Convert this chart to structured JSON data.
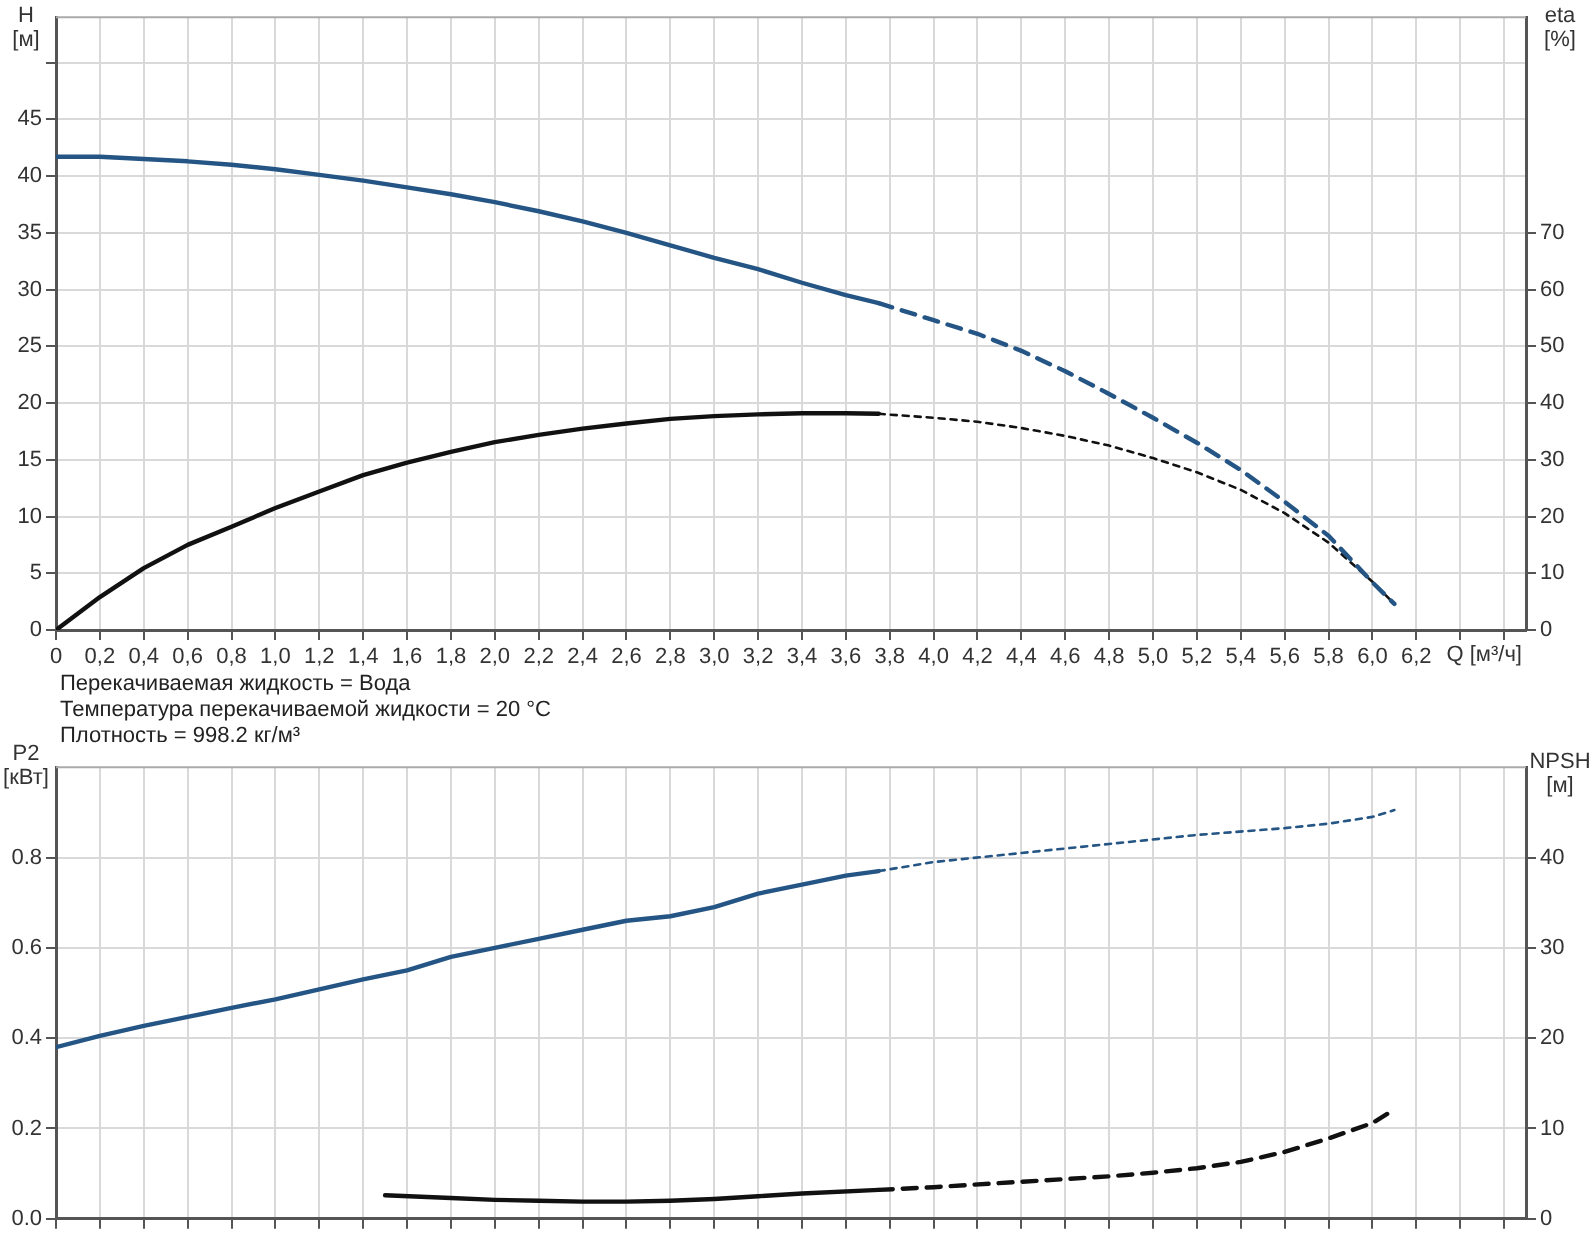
{
  "chart_data": [
    {
      "type": "line",
      "ylabel": "H [м]",
      "y2label": "eta [%]",
      "xlabel": "Q [м³/ч]",
      "grid": true,
      "legend": false,
      "xlim": [
        0,
        6.7
      ],
      "xticks": [
        0,
        {
          "value": 0.2,
          "label": "0,2"
        },
        {
          "value": 0.4,
          "label": "0,4"
        },
        {
          "value": 0.6,
          "label": "0,6"
        },
        {
          "value": 0.8,
          "label": "0,8"
        },
        {
          "value": 1,
          "label": "1,0"
        },
        {
          "value": 1.2,
          "label": "1,2"
        },
        {
          "value": 1.4,
          "label": "1,4"
        },
        {
          "value": 1.6,
          "label": "1,6"
        },
        {
          "value": 1.8,
          "label": "1,8"
        },
        {
          "value": 2,
          "label": "2,0"
        },
        {
          "value": 2.2,
          "label": "2,2"
        },
        {
          "value": 2.4,
          "label": "2,4"
        },
        {
          "value": 2.6,
          "label": "2,6"
        },
        {
          "value": 2.8,
          "label": "2,8"
        },
        {
          "value": 3,
          "label": "3,0"
        },
        {
          "value": 3.2,
          "label": "3,2"
        },
        {
          "value": 3.4,
          "label": "3,4"
        },
        {
          "value": 3.6,
          "label": "3,6"
        },
        {
          "value": 3.8,
          "label": "3,8"
        },
        {
          "value": 4,
          "label": "4,0"
        },
        {
          "value": 4.2,
          "label": "4,2"
        },
        {
          "value": 4.4,
          "label": "4,4"
        },
        {
          "value": 4.6,
          "label": "4,6"
        },
        {
          "value": 4.8,
          "label": "4,8"
        },
        {
          "value": 5,
          "label": "5,0"
        },
        {
          "value": 5.2,
          "label": "5,2"
        },
        {
          "value": 5.4,
          "label": "5,4"
        },
        {
          "value": 5.6,
          "label": "5,6"
        },
        {
          "value": 5.8,
          "label": "5,8"
        },
        {
          "value": 6,
          "label": "6,0"
        },
        {
          "value": 6.2,
          "label": "6,2"
        },
        {
          "value": 6.4,
          "label": null
        },
        {
          "value": 6.6,
          "label": null
        }
      ],
      "ylim": [
        0,
        54
      ],
      "yticks": [
        0,
        5,
        10,
        15,
        20,
        25,
        30,
        35,
        40,
        45,
        {
          "value": 50,
          "label": null
        }
      ],
      "y2lim": [
        0,
        108
      ],
      "y2ticks": [
        0,
        10,
        20,
        30,
        40,
        50,
        60,
        70
      ],
      "annotations": [
        "Перекачиваемая жидкость = Вода",
        "Температура перекачиваемой жидкости = 20 °C",
        "Плотность = 998.2 кг/м³"
      ],
      "series": [
        {
          "color": "#245584",
          "line_style": "solid",
          "x": [
            0,
            0.2,
            0.4,
            0.6,
            0.8,
            1.0,
            1.2,
            1.4,
            1.6,
            1.8,
            2.0,
            2.2,
            2.4,
            2.6,
            2.8,
            3.0,
            3.2,
            3.4,
            3.6,
            3.75
          ],
          "values": [
            41.7,
            41.7,
            41.5,
            41.3,
            41.0,
            40.6,
            40.1,
            39.6,
            39.0,
            38.4,
            37.7,
            36.9,
            36.0,
            35.0,
            33.9,
            32.8,
            31.8,
            30.6,
            29.5,
            28.8
          ]
        },
        {
          "color": "#245584",
          "line_style": "dashed",
          "x": [
            3.75,
            4.0,
            4.2,
            4.4,
            4.6,
            4.8,
            5.0,
            5.2,
            5.4,
            5.6,
            5.8,
            6.0,
            6.1
          ],
          "values": [
            28.8,
            27.3,
            26.1,
            24.6,
            22.8,
            20.8,
            18.7,
            16.5,
            14.1,
            11.3,
            8.3,
            4.2,
            2.3
          ]
        },
        {
          "color": "#111111",
          "line_style": "solid",
          "axis": "y2",
          "x": [
            0,
            0.2,
            0.4,
            0.6,
            0.8,
            1.0,
            1.2,
            1.4,
            1.6,
            1.8,
            2.0,
            2.2,
            2.4,
            2.6,
            2.8,
            3.0,
            3.2,
            3.4,
            3.6,
            3.75
          ],
          "values": [
            0,
            5.8,
            10.9,
            15.0,
            18.2,
            21.5,
            24.4,
            27.3,
            29.5,
            31.4,
            33.1,
            34.4,
            35.5,
            36.4,
            37.2,
            37.7,
            38.0,
            38.2,
            38.2,
            38.1
          ]
        },
        {
          "color": "#111111",
          "line_style": "dotted",
          "axis": "y2",
          "x": [
            3.75,
            4.0,
            4.2,
            4.4,
            4.6,
            4.8,
            5.0,
            5.2,
            5.4,
            5.6,
            5.8,
            6.0,
            6.1
          ],
          "values": [
            38.1,
            37.4,
            36.7,
            35.6,
            34.2,
            32.5,
            30.3,
            27.8,
            24.7,
            20.6,
            15.4,
            8.5,
            4.6
          ]
        }
      ]
    },
    {
      "type": "line",
      "ylabel": "P2 [кВт]",
      "y2label": "NPSH [м]",
      "grid": true,
      "legend": false,
      "tick_labels": "y",
      "xlim": [
        0,
        6.7
      ],
      "xticks": [
        0,
        0.2,
        0.4,
        0.6,
        0.8,
        1,
        1.2,
        1.4,
        1.6,
        1.8,
        2,
        2.2,
        2.4,
        2.6,
        2.8,
        3,
        3.2,
        3.4,
        3.6,
        3.8,
        4,
        4.2,
        4.4,
        4.6,
        4.8,
        5,
        5.2,
        5.4,
        5.6,
        5.8,
        6,
        6.2,
        6.4,
        6.6
      ],
      "ylim": [
        0,
        1
      ],
      "yticks": [
        {
          "value": 0,
          "label": "0.0"
        },
        0.2,
        0.4,
        0.6,
        0.8
      ],
      "y2lim": [
        0,
        50
      ],
      "y2ticks": [
        0,
        10,
        20,
        30,
        40
      ],
      "series": [
        {
          "color": "#245584",
          "line_style": "solid",
          "x": [
            0,
            0.2,
            0.4,
            0.6,
            0.8,
            1.0,
            1.2,
            1.4,
            1.6,
            1.8,
            2.0,
            2.2,
            2.4,
            2.6,
            2.8,
            3.0,
            3.2,
            3.4,
            3.6,
            3.75
          ],
          "values": [
            0.38,
            0.405,
            0.427,
            0.447,
            0.467,
            0.486,
            0.508,
            0.53,
            0.55,
            0.58,
            0.6,
            0.62,
            0.64,
            0.66,
            0.67,
            0.69,
            0.72,
            0.74,
            0.76,
            0.77
          ]
        },
        {
          "color": "#245584",
          "line_style": "dotted",
          "x": [
            3.75,
            4.0,
            4.4,
            4.8,
            5.2,
            5.6,
            5.8,
            6.0,
            6.1
          ],
          "values": [
            0.77,
            0.79,
            0.81,
            0.83,
            0.85,
            0.865,
            0.875,
            0.89,
            0.905
          ]
        },
        {
          "color": "#111111",
          "line_style": "solid",
          "axis": "y2",
          "x": [
            1.5,
            1.8,
            2.0,
            2.2,
            2.4,
            2.6,
            2.8,
            3.0,
            3.2,
            3.4,
            3.75
          ],
          "values": [
            2.6,
            2.3,
            2.1,
            2.0,
            1.9,
            1.9,
            2.0,
            2.2,
            2.5,
            2.8,
            3.2
          ]
        },
        {
          "color": "#111111",
          "line_style": "dashed",
          "axis": "y2",
          "x": [
            3.75,
            4.0,
            4.4,
            4.8,
            5.0,
            5.2,
            5.4,
            5.6,
            5.8,
            6.0,
            6.1
          ],
          "values": [
            3.2,
            3.5,
            4.1,
            4.7,
            5.1,
            5.6,
            6.3,
            7.4,
            8.9,
            10.6,
            12.1
          ]
        }
      ]
    }
  ]
}
